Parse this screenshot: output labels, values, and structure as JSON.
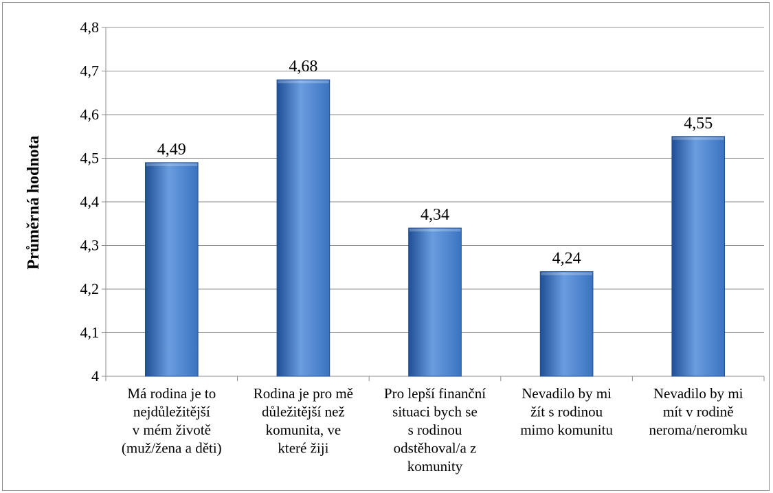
{
  "chart_data": {
    "type": "bar",
    "title": "",
    "xlabel": "",
    "ylabel": "Průměrná hodnota",
    "ylim": [
      4,
      4.8
    ],
    "ytick_step": 0.1,
    "yticks": [
      "4",
      "4,1",
      "4,2",
      "4,3",
      "4,4",
      "4,5",
      "4,6",
      "4,7",
      "4,8"
    ],
    "grid": true,
    "legend": "none",
    "categories": [
      [
        "Má rodina je to",
        "nejdůležitější",
        "v mém životě",
        "(muž/žena a děti)"
      ],
      [
        "Rodina je pro mě",
        "důležitější než",
        "komunita, ve",
        "které žiji"
      ],
      [
        "Pro lepší finanční",
        "situaci bych se",
        "s rodinou",
        "odstěhoval/a z",
        "komunity"
      ],
      [
        "Nevadilo by mi",
        "žít s rodinou",
        "mimo komunitu"
      ],
      [
        "Nevadilo by mi",
        "mít v rodině",
        "neroma/neromku"
      ]
    ],
    "values": [
      4.49,
      4.68,
      4.34,
      4.24,
      4.55
    ],
    "data_labels": [
      "4,49",
      "4,68",
      "4,34",
      "4,24",
      "4,55"
    ],
    "bar_color": "#3a73c0",
    "bar_color_light": "#6a9de0",
    "bar_color_dark": "#1f4f96"
  }
}
